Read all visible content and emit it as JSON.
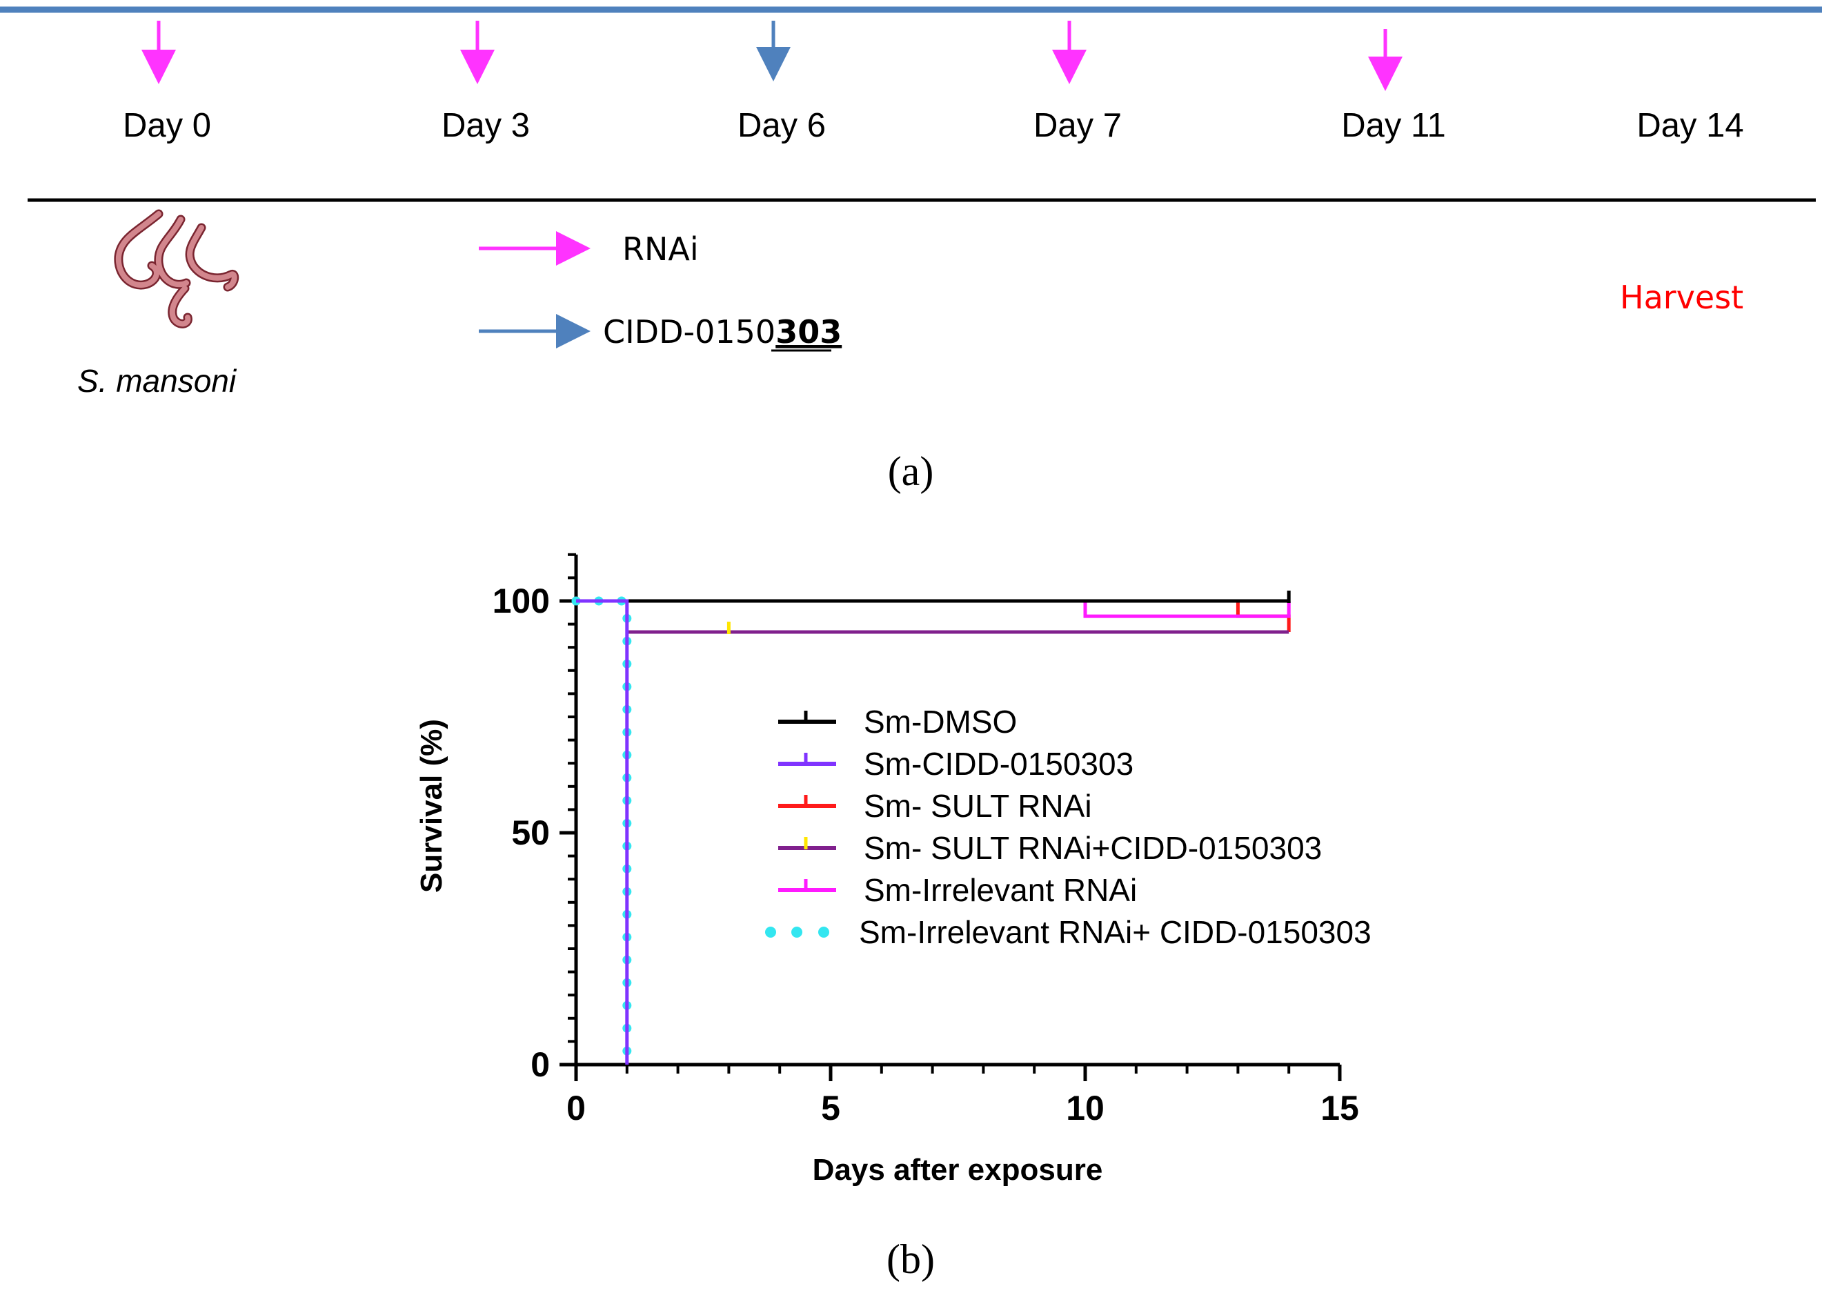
{
  "colors": {
    "magenta": "#ff33ff",
    "blue": "#4f81bd",
    "harvest_red": "#ff0000",
    "black": "#000000",
    "purple": "#8033ff",
    "red": "#ff1a1a",
    "dark_purple": "#80208d",
    "pink": "#ff1aff",
    "cyan": "#33e6f0",
    "yellow": "#ffe600"
  },
  "panel_a": {
    "timeline_days": [
      {
        "label": "Day 0",
        "arrow": "magenta"
      },
      {
        "label": "Day 3",
        "arrow": "magenta"
      },
      {
        "label": "Day 6",
        "arrow": "blue"
      },
      {
        "label": "Day 7",
        "arrow": "magenta"
      },
      {
        "label": "Day 11",
        "arrow": "magenta"
      },
      {
        "label": "Day 14",
        "arrow": null
      }
    ],
    "organism_icon": "schistosome-worms-icon",
    "organism_label": "S. mansoni",
    "key": {
      "rnai_label": "RNAi",
      "compound_prefix": "CIDD-0150",
      "compound_emphasis": "303"
    },
    "harvest_label": "Harvest",
    "panel_label": "(a)"
  },
  "chart_data": {
    "type": "line",
    "subtype": "kaplan-meier survival curve",
    "xlabel": "Days after exposure",
    "ylabel": "Survival (%)",
    "xlim": [
      0,
      15
    ],
    "ylim": [
      0,
      110
    ],
    "x_ticks": [
      0,
      5,
      10,
      15
    ],
    "y_ticks": [
      0,
      50,
      100
    ],
    "x_minor_step": 1,
    "y_minor_step": 5,
    "legend_position": "center-right",
    "series": [
      {
        "name": "Sm-DMSO",
        "color": "#000000",
        "style": "solid",
        "steps": [
          [
            0,
            100
          ],
          [
            14,
            100
          ]
        ],
        "censor": [
          [
            14,
            100
          ]
        ]
      },
      {
        "name": "Sm-CIDD-0150303",
        "color": "#8033ff",
        "style": "solid",
        "steps": [
          [
            0,
            100
          ],
          [
            1,
            100
          ],
          [
            1,
            0
          ]
        ],
        "censor": []
      },
      {
        "name": "Sm- SULT RNAi",
        "color": "#ff1a1a",
        "style": "solid",
        "steps": [
          [
            0,
            100
          ],
          [
            13,
            100
          ],
          [
            13,
            96.7
          ],
          [
            14,
            96.7
          ],
          [
            14,
            93.3
          ]
        ],
        "censor": []
      },
      {
        "name": "Sm- SULT RNAi+CIDD-0150303",
        "color": "#80208d",
        "style": "solid",
        "steps": [
          [
            1,
            93.3
          ],
          [
            14,
            93.3
          ]
        ],
        "censor": [
          [
            3,
            93.3
          ]
        ]
      },
      {
        "name": "Sm-Irrelevant RNAi",
        "color": "#ff1aff",
        "style": "solid",
        "steps": [
          [
            10,
            100
          ],
          [
            10,
            96.7
          ],
          [
            14,
            96.7
          ],
          [
            14,
            100
          ]
        ],
        "censor": []
      },
      {
        "name": "Sm-Irrelevant RNAi+ CIDD-0150303",
        "color": "#33e6f0",
        "style": "dotted",
        "steps": [
          [
            0,
            100
          ],
          [
            1,
            100
          ],
          [
            1,
            0
          ]
        ],
        "censor": []
      }
    ]
  },
  "panel_b": {
    "panel_label": "(b)"
  }
}
